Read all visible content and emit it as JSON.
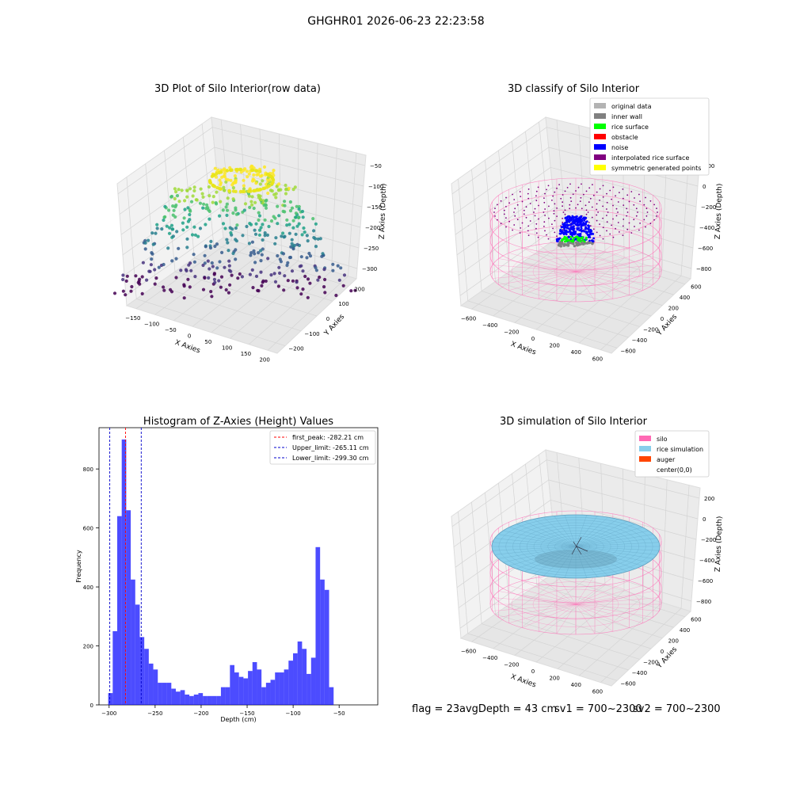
{
  "suptitle": "GHGHR01 2026-06-23 22:23:58",
  "panels": {
    "raw": {
      "title": "3D Plot of Silo Interior(row data)",
      "xlabel": "X Axies",
      "ylabel": "Y Axies",
      "zlabel": "Z Axies (Depth)",
      "xticks": [
        "−150",
        "−100",
        "−50",
        "0",
        "50",
        "100",
        "150",
        "200"
      ],
      "yticks": [
        "−200",
        "−100",
        "0",
        "100",
        "200"
      ],
      "zticks": [
        "−50",
        "−100",
        "−150",
        "−200",
        "−250",
        "−300"
      ]
    },
    "classify": {
      "title": "3D classify of Silo Interior",
      "xlabel": "X Axies",
      "ylabel": "Y Axies",
      "zlabel": "Z Axies (Depth)",
      "xticks": [
        "−600",
        "−400",
        "−200",
        "0",
        "200",
        "400",
        "600"
      ],
      "yticks": [
        "−600",
        "−400",
        "−200",
        "0",
        "200",
        "400",
        "600"
      ],
      "zticks": [
        "200",
        "0",
        "−200",
        "−400",
        "−600",
        "−800"
      ],
      "legend": [
        {
          "label": "original data",
          "color": "#b3b3b3"
        },
        {
          "label": "inner wall",
          "color": "#808080"
        },
        {
          "label": "rice surface",
          "color": "#00ff00"
        },
        {
          "label": "obstacle",
          "color": "#ff0000"
        },
        {
          "label": "noise",
          "color": "#0000ff"
        },
        {
          "label": "interpolated rice surface",
          "color": "#800080"
        },
        {
          "label": "symmetric generated points",
          "color": "#ffff00"
        }
      ]
    },
    "simulation": {
      "title": "3D simulation of Silo Interior",
      "xlabel": "X Axies",
      "ylabel": "Y Axies",
      "zlabel": "Z Axies (Depth)",
      "xticks": [
        "−600",
        "−400",
        "−200",
        "0",
        "200",
        "400",
        "600"
      ],
      "yticks": [
        "−600",
        "−400",
        "−200",
        "0",
        "200",
        "400",
        "600"
      ],
      "zticks": [
        "200",
        "0",
        "−200",
        "−400",
        "−600",
        "−800"
      ],
      "legend": [
        {
          "label": "silo",
          "color": "#ff69b4"
        },
        {
          "label": "rice simulation",
          "color": "#87ceeb"
        },
        {
          "label": "auger",
          "color": "#ff4500"
        },
        {
          "label": "center(0,0)",
          "color": ""
        }
      ]
    }
  },
  "chart_data": {
    "type": "bar",
    "title": "Histogram of Z-Axies (Height) Values",
    "xlabel": "Depth (cm)",
    "ylabel": "Frequency",
    "xlim": [
      -311,
      -8
    ],
    "ylim": [
      0,
      940
    ],
    "xticks": [
      -300,
      -250,
      -200,
      -150,
      -100,
      -50
    ],
    "yticks": [
      0,
      200,
      400,
      600,
      800
    ],
    "bar_color": "#0000ff",
    "bin_start": -301,
    "bin_width": 4.9,
    "values": [
      40,
      250,
      640,
      900,
      660,
      425,
      340,
      230,
      190,
      140,
      120,
      75,
      75,
      75,
      55,
      45,
      50,
      35,
      30,
      35,
      40,
      30,
      30,
      30,
      30,
      60,
      60,
      135,
      110,
      95,
      90,
      115,
      145,
      120,
      60,
      75,
      85,
      110,
      110,
      120,
      150,
      175,
      215,
      190,
      105,
      160,
      535,
      425,
      390,
      60
    ],
    "vlines": [
      {
        "label": "first_peak: -282.21 cm",
        "x": -282.21,
        "color": "#ff0000"
      },
      {
        "label": "Upper_limit: -265.11 cm",
        "x": -265.11,
        "color": "#0000cc"
      },
      {
        "label": "Lower_limit: -299.30 cm",
        "x": -299.3,
        "color": "#0000cc"
      }
    ]
  },
  "status": {
    "flag": "flag = 23",
    "avg_depth": "avgDepth = 43 cm",
    "sv1": "sv1 = 700~2300",
    "sv2": "sv2 = 700~2300"
  }
}
